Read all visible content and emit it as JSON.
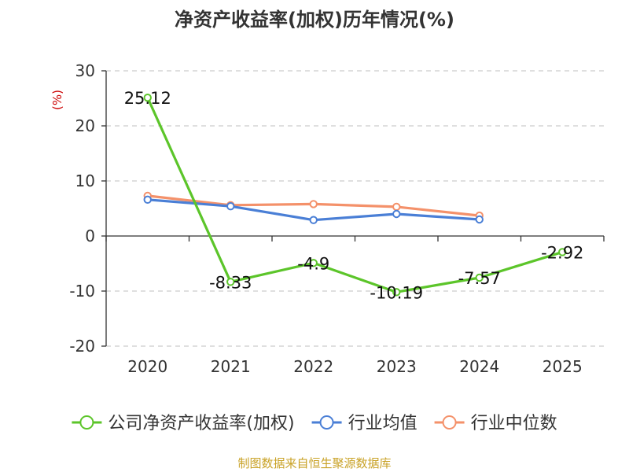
{
  "chart_data": {
    "type": "line",
    "title": "净资产收益率(加权)历年情况(%)",
    "ylabel": "(%)",
    "categories": [
      "2020",
      "2021",
      "2022",
      "2023",
      "2024",
      "2025"
    ],
    "ylim": [
      -20,
      30
    ],
    "yticks": [
      30,
      20,
      10,
      0,
      -10,
      -20
    ],
    "ytick_labels": [
      "30",
      "20",
      "10",
      "0",
      "-10",
      "-20"
    ],
    "grid": true,
    "legend_position": "bottom",
    "series": [
      {
        "name": "公司净资产收益率(加权)",
        "color": "#5cc52a",
        "values": [
          25.12,
          -8.33,
          -4.9,
          -10.19,
          -7.57,
          -2.92
        ],
        "labels": [
          "25.12",
          "-8.33",
          "-4.9",
          "-10.19",
          "-7.57",
          "-2.92"
        ]
      },
      {
        "name": "行业均值",
        "color": "#4a7fd6",
        "values": [
          6.6,
          5.4,
          2.9,
          4.0,
          3.0,
          null
        ]
      },
      {
        "name": "行业中位数",
        "color": "#f4916a",
        "values": [
          7.3,
          5.6,
          5.8,
          5.3,
          3.7,
          null
        ]
      }
    ]
  },
  "source_text": "制图数据来自恒生聚源数据库"
}
